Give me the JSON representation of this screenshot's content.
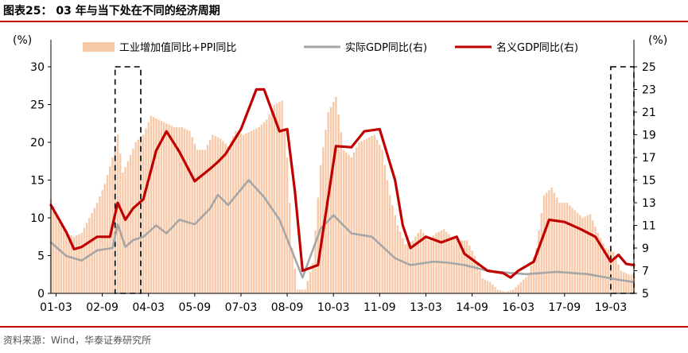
{
  "figure": {
    "title": "图表25： 03 年与当下处在不同的经济周期",
    "source": "资料来源：Wind，华泰证券研究所"
  },
  "chart_data": {
    "type": "bar+line",
    "left_axis": {
      "unit_label": "(%)",
      "ylim": [
        0,
        30
      ],
      "ticks": [
        "0",
        "5",
        "10",
        "15",
        "20",
        "25",
        "30"
      ]
    },
    "right_axis": {
      "unit_label": "(%)",
      "ylim": [
        5,
        25
      ],
      "ticks": [
        "5",
        "7",
        "9",
        "11",
        "13",
        "15",
        "17",
        "19",
        "21",
        "23",
        "25"
      ]
    },
    "x_ticks": [
      "01-03",
      "02-09",
      "04-03",
      "05-09",
      "07-03",
      "08-09",
      "10-03",
      "11-09",
      "13-03",
      "14-09",
      "16-03",
      "17-09",
      "19-03"
    ],
    "x_range": [
      "2001-01",
      "2019-12"
    ],
    "legend": {
      "placement": "top",
      "items": [
        {
          "label": "工业增加值同比+PPI同比",
          "color": "#f8c9a8",
          "kind": "bar"
        },
        {
          "label": "实际GDP同比(右)",
          "color": "#a6a6a6",
          "kind": "line"
        },
        {
          "label": "名义GDP同比(右)",
          "color": "#c00000",
          "kind": "line"
        }
      ]
    },
    "bar_series": {
      "name": "工业增加值同比+PPI同比",
      "axis": "left",
      "points": [
        [
          "2001-01",
          12.5
        ],
        [
          "2001-04",
          9.5
        ],
        [
          "2001-07",
          8.0
        ],
        [
          "2001-10",
          7.5
        ],
        [
          "2002-01",
          8.0
        ],
        [
          "2002-04",
          10.0
        ],
        [
          "2002-07",
          12.0
        ],
        [
          "2002-10",
          14.5
        ],
        [
          "2003-01",
          18.0
        ],
        [
          "2003-03",
          21.0
        ],
        [
          "2003-05",
          16.0
        ],
        [
          "2003-07",
          17.5
        ],
        [
          "2003-10",
          20.0
        ],
        [
          "2004-01",
          21.0
        ],
        [
          "2004-04",
          23.5
        ],
        [
          "2004-07",
          23.0
        ],
        [
          "2004-10",
          22.5
        ],
        [
          "2005-01",
          22.0
        ],
        [
          "2005-04",
          22.0
        ],
        [
          "2005-07",
          21.5
        ],
        [
          "2005-10",
          19.0
        ],
        [
          "2006-01",
          19.0
        ],
        [
          "2006-04",
          21.0
        ],
        [
          "2006-07",
          20.5
        ],
        [
          "2006-10",
          19.5
        ],
        [
          "2007-01",
          21.5
        ],
        [
          "2007-04",
          21.0
        ],
        [
          "2007-07",
          21.5
        ],
        [
          "2007-10",
          22.0
        ],
        [
          "2008-01",
          23.0
        ],
        [
          "2008-04",
          25.0
        ],
        [
          "2008-07",
          25.5
        ],
        [
          "2008-09",
          18.0
        ],
        [
          "2008-11",
          6.0
        ],
        [
          "2009-01",
          0.5
        ],
        [
          "2009-04",
          0.5
        ],
        [
          "2009-07",
          4.0
        ],
        [
          "2009-10",
          17.0
        ],
        [
          "2010-01",
          24.0
        ],
        [
          "2010-04",
          26.0
        ],
        [
          "2010-07",
          19.0
        ],
        [
          "2010-10",
          18.0
        ],
        [
          "2011-01",
          20.0
        ],
        [
          "2011-04",
          20.5
        ],
        [
          "2011-07",
          21.0
        ],
        [
          "2011-10",
          19.0
        ],
        [
          "2012-01",
          13.0
        ],
        [
          "2012-04",
          9.0
        ],
        [
          "2012-07",
          6.5
        ],
        [
          "2012-10",
          7.0
        ],
        [
          "2013-01",
          8.5
        ],
        [
          "2013-04",
          7.0
        ],
        [
          "2013-07",
          8.0
        ],
        [
          "2013-10",
          8.5
        ],
        [
          "2014-01",
          7.5
        ],
        [
          "2014-04",
          7.0
        ],
        [
          "2014-07",
          7.0
        ],
        [
          "2014-10",
          5.0
        ],
        [
          "2015-01",
          2.0
        ],
        [
          "2015-04",
          1.5
        ],
        [
          "2015-07",
          0.5
        ],
        [
          "2015-10",
          0.2
        ],
        [
          "2016-01",
          0.5
        ],
        [
          "2016-04",
          1.5
        ],
        [
          "2016-07",
          2.5
        ],
        [
          "2016-10",
          6.0
        ],
        [
          "2017-01",
          13.0
        ],
        [
          "2017-04",
          14.0
        ],
        [
          "2017-07",
          12.0
        ],
        [
          "2017-10",
          12.0
        ],
        [
          "2018-01",
          11.0
        ],
        [
          "2018-04",
          10.0
        ],
        [
          "2018-07",
          10.5
        ],
        [
          "2018-10",
          8.0
        ],
        [
          "2019-01",
          6.0
        ],
        [
          "2019-04",
          5.5
        ],
        [
          "2019-07",
          3.0
        ],
        [
          "2019-10",
          2.5
        ]
      ]
    },
    "line_series": [
      {
        "name": "实际GDP同比(右)",
        "axis": "right",
        "color": "#a6a6a6",
        "points": [
          [
            "2001-01",
            9.5
          ],
          [
            "2001-07",
            8.3
          ],
          [
            "2002-01",
            7.9
          ],
          [
            "2002-07",
            8.8
          ],
          [
            "2003-01",
            9.0
          ],
          [
            "2003-03",
            11.1
          ],
          [
            "2003-06",
            9.1
          ],
          [
            "2003-09",
            9.7
          ],
          [
            "2004-01",
            10.0
          ],
          [
            "2004-06",
            11.0
          ],
          [
            "2004-10",
            10.3
          ],
          [
            "2005-03",
            11.5
          ],
          [
            "2005-09",
            11.1
          ],
          [
            "2006-03",
            12.5
          ],
          [
            "2006-06",
            13.7
          ],
          [
            "2006-10",
            12.8
          ],
          [
            "2007-06",
            15.0
          ],
          [
            "2007-12",
            13.5
          ],
          [
            "2008-06",
            11.5
          ],
          [
            "2009-03",
            6.4
          ],
          [
            "2009-10",
            10.7
          ],
          [
            "2010-03",
            11.9
          ],
          [
            "2010-10",
            10.3
          ],
          [
            "2011-06",
            10.0
          ],
          [
            "2012-03",
            8.1
          ],
          [
            "2012-09",
            7.5
          ],
          [
            "2013-06",
            7.8
          ],
          [
            "2013-12",
            7.7
          ],
          [
            "2014-06",
            7.5
          ],
          [
            "2015-03",
            7.0
          ],
          [
            "2015-12",
            6.8
          ],
          [
            "2016-06",
            6.7
          ],
          [
            "2017-06",
            6.9
          ],
          [
            "2018-06",
            6.7
          ],
          [
            "2019-06",
            6.2
          ],
          [
            "2019-12",
            6.0
          ]
        ]
      },
      {
        "name": "名义GDP同比(右)",
        "axis": "right",
        "color": "#c00000",
        "points": [
          [
            "2001-01",
            12.8
          ],
          [
            "2001-07",
            10.4
          ],
          [
            "2001-10",
            8.9
          ],
          [
            "2002-01",
            9.1
          ],
          [
            "2002-07",
            10.0
          ],
          [
            "2002-12",
            10.0
          ],
          [
            "2003-03",
            13.0
          ],
          [
            "2003-06",
            11.5
          ],
          [
            "2003-09",
            12.5
          ],
          [
            "2004-01",
            13.3
          ],
          [
            "2004-06",
            17.6
          ],
          [
            "2004-10",
            19.3
          ],
          [
            "2005-03",
            17.5
          ],
          [
            "2005-09",
            14.9
          ],
          [
            "2006-03",
            16.0
          ],
          [
            "2006-06",
            16.6
          ],
          [
            "2006-09",
            17.3
          ],
          [
            "2007-03",
            19.5
          ],
          [
            "2007-09",
            23.0
          ],
          [
            "2007-12",
            23.0
          ],
          [
            "2008-06",
            19.3
          ],
          [
            "2008-09",
            19.5
          ],
          [
            "2008-12",
            14.0
          ],
          [
            "2009-03",
            7.0
          ],
          [
            "2009-09",
            7.5
          ],
          [
            "2010-01",
            13.5
          ],
          [
            "2010-04",
            18.0
          ],
          [
            "2010-10",
            17.9
          ],
          [
            "2011-03",
            19.3
          ],
          [
            "2011-09",
            19.5
          ],
          [
            "2012-03",
            15.0
          ],
          [
            "2012-06",
            11.0
          ],
          [
            "2012-09",
            9.0
          ],
          [
            "2013-03",
            10.0
          ],
          [
            "2013-09",
            9.5
          ],
          [
            "2014-03",
            10.0
          ],
          [
            "2014-06",
            8.5
          ],
          [
            "2014-09",
            8.0
          ],
          [
            "2015-03",
            7.0
          ],
          [
            "2015-09",
            6.8
          ],
          [
            "2015-12",
            6.4
          ],
          [
            "2016-03",
            7.0
          ],
          [
            "2016-09",
            7.8
          ],
          [
            "2017-03",
            11.5
          ],
          [
            "2017-09",
            11.3
          ],
          [
            "2018-03",
            10.7
          ],
          [
            "2018-09",
            10.0
          ],
          [
            "2019-03",
            7.8
          ],
          [
            "2019-06",
            8.4
          ],
          [
            "2019-09",
            7.6
          ],
          [
            "2019-12",
            7.5
          ]
        ]
      }
    ],
    "highlight_boxes": [
      {
        "from": "2003-02",
        "to": "2003-12",
        "style": "dashed"
      },
      {
        "from": "2019-03",
        "to": "2019-12",
        "style": "dashed"
      }
    ]
  }
}
